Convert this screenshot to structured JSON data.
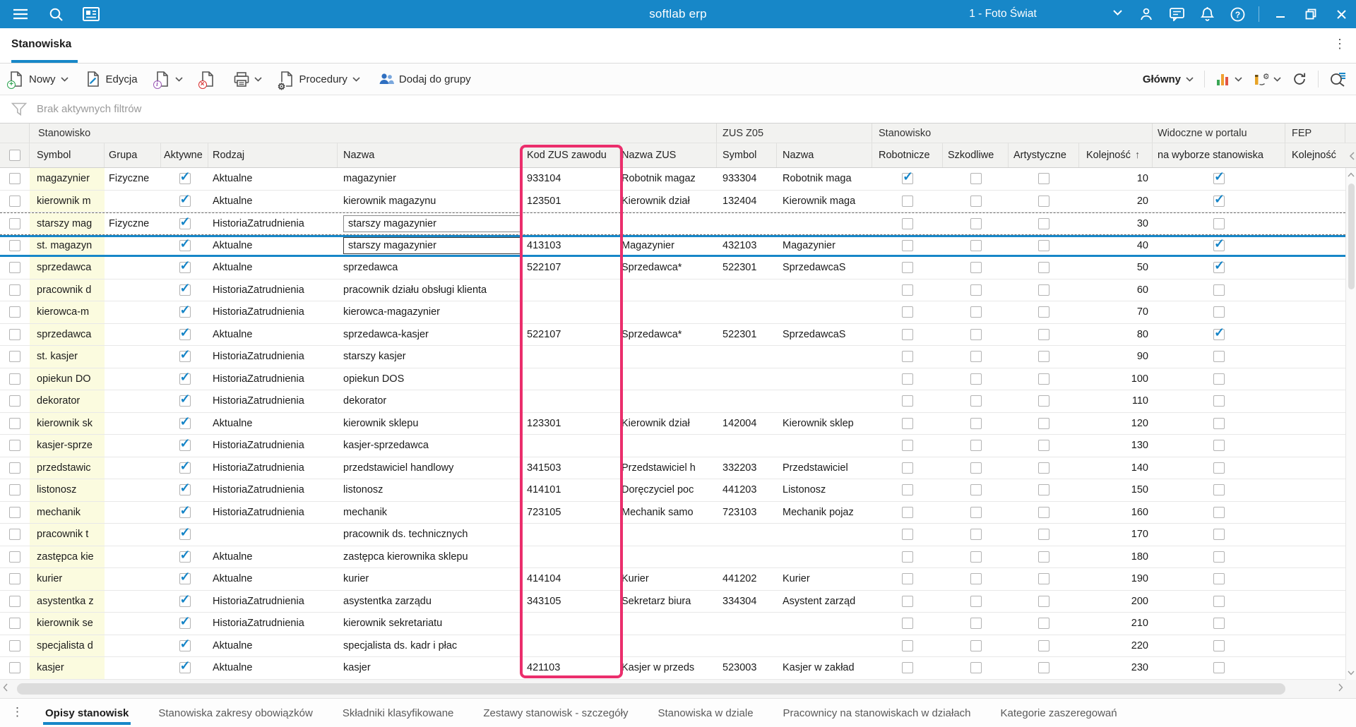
{
  "topbar": {
    "title": "softlab erp",
    "company": "1 - Foto Świat"
  },
  "tabbar": {
    "tab": "Stanowiska"
  },
  "toolbar": {
    "nowy": "Nowy",
    "edycja": "Edycja",
    "procedury": "Procedury",
    "dodaj_do_grupy": "Dodaj do grupy",
    "glowny": "Główny"
  },
  "filter": {
    "text": "Brak aktywnych filtrów"
  },
  "colors": {
    "accent_blue": "#1787c8",
    "highlight_pink": "#eb2e6c",
    "symbol_yellow": "#fbfbdf"
  },
  "table": {
    "groups": {
      "stanowisko": "Stanowisko",
      "zus_z05": "ZUS Z05",
      "stanowisko2": "Stanowisko",
      "widoczne_w_portalu": "Widoczne w portalu",
      "fep": "FEP"
    },
    "columns": {
      "symbol": "Symbol",
      "grupa": "Grupa",
      "aktywne": "Aktywne",
      "rodzaj": "Rodzaj",
      "nazwa": "Nazwa",
      "kod_zus": "Kod ZUS zawodu",
      "nazwa_zus": "Nazwa ZUS",
      "z05_symbol": "Symbol",
      "z05_nazwa": "Nazwa",
      "robotnicze": "Robotnicze",
      "szkodliwe": "Szkodliwe",
      "artystyczne": "Artystyczne",
      "kolejnosc": "Kolejność",
      "na_wyborze": "na wyborze stanowiska",
      "fep_kolejnosc": "Kolejność"
    },
    "sort_arrow": "↑",
    "rows": [
      {
        "symbol": "magazynier",
        "grupa": "Fizyczne",
        "aktywne": true,
        "rodzaj": "Aktualne",
        "nazwa": "magazynier",
        "kod_zus": "933104",
        "nazwa_zus": "Robotnik magaz",
        "z05_symbol": "933304",
        "z05_nazwa": "Robotnik maga",
        "robotnicze": true,
        "szkodliwe": false,
        "artystyczne": false,
        "kolejnosc": "10",
        "na_wyborze": true,
        "fep_kolejnosc": ""
      },
      {
        "symbol": "kierownik m",
        "grupa": "",
        "aktywne": true,
        "rodzaj": "Aktualne",
        "nazwa": "kierownik magazynu",
        "kod_zus": "123501",
        "nazwa_zus": "Kierownik dział",
        "z05_symbol": "132404",
        "z05_nazwa": "Kierownik maga",
        "robotnicze": false,
        "szkodliwe": false,
        "artystyczne": false,
        "kolejnosc": "20",
        "na_wyborze": true,
        "fep_kolejnosc": ""
      },
      {
        "symbol": "starszy mag",
        "grupa": "Fizyczne",
        "aktywne": true,
        "rodzaj": "HistoriaZatrudnienia",
        "nazwa": "starszy magazynier",
        "kod_zus": "",
        "nazwa_zus": "",
        "z05_symbol": "",
        "z05_nazwa": "",
        "robotnicze": false,
        "szkodliwe": false,
        "artystyczne": false,
        "kolejnosc": "30",
        "na_wyborze": false,
        "fep_kolejnosc": "",
        "state": "drag",
        "nazwa_boxed": true
      },
      {
        "symbol": "st. magazyn",
        "grupa": "",
        "aktywne": true,
        "rodzaj": "Aktualne",
        "nazwa": "starszy magazynier",
        "kod_zus": "413103",
        "nazwa_zus": "Magazynier",
        "z05_symbol": "432103",
        "z05_nazwa": "Magazynier",
        "robotnicze": false,
        "szkodliwe": false,
        "artystyczne": false,
        "kolejnosc": "40",
        "na_wyborze": true,
        "fep_kolejnosc": "",
        "state": "selected",
        "nazwa_boxed": true
      },
      {
        "symbol": "sprzedawca",
        "grupa": "",
        "aktywne": true,
        "rodzaj": "Aktualne",
        "nazwa": "sprzedawca",
        "kod_zus": "522107",
        "nazwa_zus": "Sprzedawca*",
        "z05_symbol": "522301",
        "z05_nazwa": "SprzedawcaS",
        "robotnicze": false,
        "szkodliwe": false,
        "artystyczne": false,
        "kolejnosc": "50",
        "na_wyborze": true,
        "fep_kolejnosc": ""
      },
      {
        "symbol": "pracownik d",
        "grupa": "",
        "aktywne": true,
        "rodzaj": "HistoriaZatrudnienia",
        "nazwa": "pracownik działu obsługi klienta",
        "kod_zus": "",
        "nazwa_zus": "",
        "z05_symbol": "",
        "z05_nazwa": "",
        "robotnicze": false,
        "szkodliwe": false,
        "artystyczne": false,
        "kolejnosc": "60",
        "na_wyborze": false,
        "fep_kolejnosc": ""
      },
      {
        "symbol": "kierowca-m",
        "grupa": "",
        "aktywne": true,
        "rodzaj": "HistoriaZatrudnienia",
        "nazwa": "kierowca-magazynier",
        "kod_zus": "",
        "nazwa_zus": "",
        "z05_symbol": "",
        "z05_nazwa": "",
        "robotnicze": false,
        "szkodliwe": false,
        "artystyczne": false,
        "kolejnosc": "70",
        "na_wyborze": false,
        "fep_kolejnosc": ""
      },
      {
        "symbol": "sprzedawca",
        "grupa": "",
        "aktywne": true,
        "rodzaj": "Aktualne",
        "nazwa": "sprzedawca-kasjer",
        "kod_zus": "522107",
        "nazwa_zus": "Sprzedawca*",
        "z05_symbol": "522301",
        "z05_nazwa": "SprzedawcaS",
        "robotnicze": false,
        "szkodliwe": false,
        "artystyczne": false,
        "kolejnosc": "80",
        "na_wyborze": true,
        "fep_kolejnosc": ""
      },
      {
        "symbol": "st. kasjer",
        "grupa": "",
        "aktywne": true,
        "rodzaj": "HistoriaZatrudnienia",
        "nazwa": "starszy kasjer",
        "kod_zus": "",
        "nazwa_zus": "",
        "z05_symbol": "",
        "z05_nazwa": "",
        "robotnicze": false,
        "szkodliwe": false,
        "artystyczne": false,
        "kolejnosc": "90",
        "na_wyborze": false,
        "fep_kolejnosc": ""
      },
      {
        "symbol": "opiekun DO",
        "grupa": "",
        "aktywne": true,
        "rodzaj": "HistoriaZatrudnienia",
        "nazwa": "opiekun DOS",
        "kod_zus": "",
        "nazwa_zus": "",
        "z05_symbol": "",
        "z05_nazwa": "",
        "robotnicze": false,
        "szkodliwe": false,
        "artystyczne": false,
        "kolejnosc": "100",
        "na_wyborze": false,
        "fep_kolejnosc": ""
      },
      {
        "symbol": "dekorator",
        "grupa": "",
        "aktywne": true,
        "rodzaj": "HistoriaZatrudnienia",
        "nazwa": "dekorator",
        "kod_zus": "",
        "nazwa_zus": "",
        "z05_symbol": "",
        "z05_nazwa": "",
        "robotnicze": false,
        "szkodliwe": false,
        "artystyczne": false,
        "kolejnosc": "110",
        "na_wyborze": false,
        "fep_kolejnosc": ""
      },
      {
        "symbol": "kierownik sk",
        "grupa": "",
        "aktywne": true,
        "rodzaj": "Aktualne",
        "nazwa": "kierownik sklepu",
        "kod_zus": "123301",
        "nazwa_zus": "Kierownik dział",
        "z05_symbol": "142004",
        "z05_nazwa": "Kierownik sklep",
        "robotnicze": false,
        "szkodliwe": false,
        "artystyczne": false,
        "kolejnosc": "120",
        "na_wyborze": false,
        "fep_kolejnosc": ""
      },
      {
        "symbol": "kasjer-sprze",
        "grupa": "",
        "aktywne": true,
        "rodzaj": "HistoriaZatrudnienia",
        "nazwa": "kasjer-sprzedawca",
        "kod_zus": "",
        "nazwa_zus": "",
        "z05_symbol": "",
        "z05_nazwa": "",
        "robotnicze": false,
        "szkodliwe": false,
        "artystyczne": false,
        "kolejnosc": "130",
        "na_wyborze": false,
        "fep_kolejnosc": ""
      },
      {
        "symbol": "przedstawic",
        "grupa": "",
        "aktywne": true,
        "rodzaj": "HistoriaZatrudnienia",
        "nazwa": "przedstawiciel handlowy",
        "kod_zus": "341503",
        "nazwa_zus": "Przedstawiciel h",
        "z05_symbol": "332203",
        "z05_nazwa": "Przedstawiciel",
        "robotnicze": false,
        "szkodliwe": false,
        "artystyczne": false,
        "kolejnosc": "140",
        "na_wyborze": false,
        "fep_kolejnosc": ""
      },
      {
        "symbol": "listonosz",
        "grupa": "",
        "aktywne": true,
        "rodzaj": "HistoriaZatrudnienia",
        "nazwa": "listonosz",
        "kod_zus": "414101",
        "nazwa_zus": "Doręczyciel poc",
        "z05_symbol": "441203",
        "z05_nazwa": "Listonosz",
        "robotnicze": false,
        "szkodliwe": false,
        "artystyczne": false,
        "kolejnosc": "150",
        "na_wyborze": false,
        "fep_kolejnosc": ""
      },
      {
        "symbol": "mechanik",
        "grupa": "",
        "aktywne": true,
        "rodzaj": "HistoriaZatrudnienia",
        "nazwa": "mechanik",
        "kod_zus": "723105",
        "nazwa_zus": "Mechanik samo",
        "z05_symbol": "723103",
        "z05_nazwa": "Mechanik pojaz",
        "robotnicze": false,
        "szkodliwe": false,
        "artystyczne": false,
        "kolejnosc": "160",
        "na_wyborze": false,
        "fep_kolejnosc": ""
      },
      {
        "symbol": "pracownik t",
        "grupa": "",
        "aktywne": true,
        "rodzaj": "",
        "nazwa": "pracownik ds. technicznych",
        "kod_zus": "",
        "nazwa_zus": "",
        "z05_symbol": "",
        "z05_nazwa": "",
        "robotnicze": false,
        "szkodliwe": false,
        "artystyczne": false,
        "kolejnosc": "170",
        "na_wyborze": false,
        "fep_kolejnosc": ""
      },
      {
        "symbol": "zastępca kie",
        "grupa": "",
        "aktywne": true,
        "rodzaj": "Aktualne",
        "nazwa": "zastępca kierownika sklepu",
        "kod_zus": "",
        "nazwa_zus": "",
        "z05_symbol": "",
        "z05_nazwa": "",
        "robotnicze": false,
        "szkodliwe": false,
        "artystyczne": false,
        "kolejnosc": "180",
        "na_wyborze": false,
        "fep_kolejnosc": ""
      },
      {
        "symbol": "kurier",
        "grupa": "",
        "aktywne": true,
        "rodzaj": "Aktualne",
        "nazwa": "kurier",
        "kod_zus": "414104",
        "nazwa_zus": "Kurier",
        "z05_symbol": "441202",
        "z05_nazwa": "Kurier",
        "robotnicze": false,
        "szkodliwe": false,
        "artystyczne": false,
        "kolejnosc": "190",
        "na_wyborze": false,
        "fep_kolejnosc": ""
      },
      {
        "symbol": "asystentka z",
        "grupa": "",
        "aktywne": true,
        "rodzaj": "HistoriaZatrudnienia",
        "nazwa": "asystentka zarządu",
        "kod_zus": "343105",
        "nazwa_zus": "Sekretarz biura",
        "z05_symbol": "334304",
        "z05_nazwa": "Asystent zarząd",
        "robotnicze": false,
        "szkodliwe": false,
        "artystyczne": false,
        "kolejnosc": "200",
        "na_wyborze": false,
        "fep_kolejnosc": ""
      },
      {
        "symbol": "kierownik se",
        "grupa": "",
        "aktywne": true,
        "rodzaj": "HistoriaZatrudnienia",
        "nazwa": "kierownik sekretariatu",
        "kod_zus": "",
        "nazwa_zus": "",
        "z05_symbol": "",
        "z05_nazwa": "",
        "robotnicze": false,
        "szkodliwe": false,
        "artystyczne": false,
        "kolejnosc": "210",
        "na_wyborze": false,
        "fep_kolejnosc": ""
      },
      {
        "symbol": "specjalista d",
        "grupa": "",
        "aktywne": true,
        "rodzaj": "Aktualne",
        "nazwa": "specjalista ds. kadr i płac",
        "kod_zus": "",
        "nazwa_zus": "",
        "z05_symbol": "",
        "z05_nazwa": "",
        "robotnicze": false,
        "szkodliwe": false,
        "artystyczne": false,
        "kolejnosc": "220",
        "na_wyborze": false,
        "fep_kolejnosc": ""
      },
      {
        "symbol": "kasjer",
        "grupa": "",
        "aktywne": true,
        "rodzaj": "Aktualne",
        "nazwa": "kasjer",
        "kod_zus": "421103",
        "nazwa_zus": "Kasjer w przeds",
        "z05_symbol": "523003",
        "z05_nazwa": "Kasjer w zakład",
        "robotnicze": false,
        "szkodliwe": false,
        "artystyczne": false,
        "kolejnosc": "230",
        "na_wyborze": false,
        "fep_kolejnosc": ""
      }
    ]
  },
  "footer": {
    "tabs": [
      {
        "label": "Opisy stanowisk",
        "active": true
      },
      {
        "label": "Stanowiska zakresy obowiązków",
        "active": false
      },
      {
        "label": "Składniki klasyfikowane",
        "active": false
      },
      {
        "label": "Zestawy stanowisk - szczegóły",
        "active": false
      },
      {
        "label": "Stanowiska w dziale",
        "active": false
      },
      {
        "label": "Pracownicy na stanowiskach w działach",
        "active": false
      },
      {
        "label": "Kategorie zaszeregowań",
        "active": false
      }
    ]
  }
}
